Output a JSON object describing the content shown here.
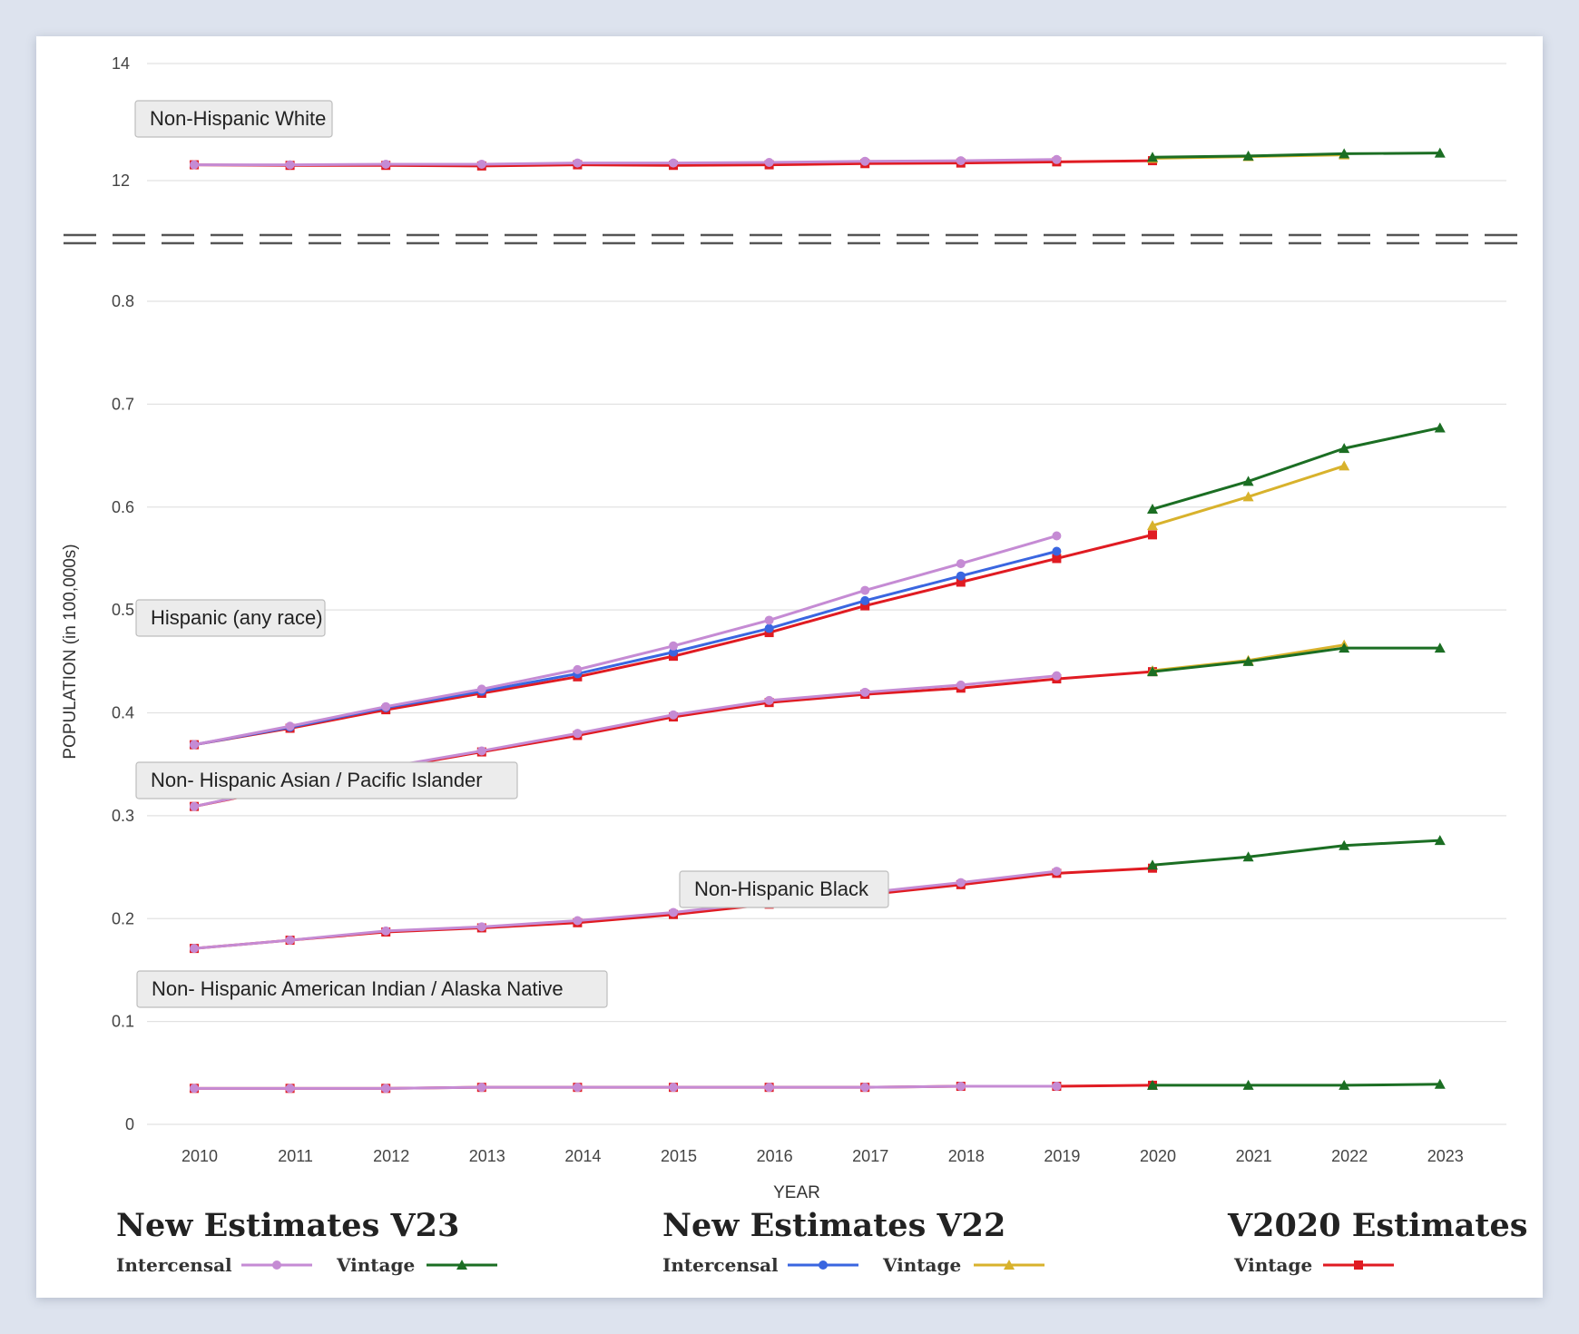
{
  "chart_data": {
    "type": "line",
    "xlabel": "YEAR",
    "ylabel": "POPULATION (in 100,000s)",
    "x": [
      "2010",
      "2011",
      "2012",
      "2013",
      "2014",
      "2015",
      "2016",
      "2017",
      "2018",
      "2019",
      "2020",
      "2021",
      "2022",
      "2023"
    ],
    "upper_axis": {
      "ylim": [
        11.05,
        14
      ],
      "ticks": [
        "14",
        "12"
      ]
    },
    "lower_axis": {
      "ylim": [
        0,
        0.8
      ],
      "ticks": [
        "0.8",
        "0.7",
        "0.6",
        "0.5",
        "0.4",
        "0.3",
        "0.2",
        "0.1",
        "0"
      ]
    },
    "axis_break": true,
    "grid": true,
    "group_labels": [
      "Non-Hispanic White",
      "Hispanic (any race)",
      "Non- Hispanic Asian / Pacific Islander",
      "Non-Hispanic Black",
      "Non- Hispanic American Indian / Alaska Native"
    ],
    "colors": {
      "v23_intercensal": "#c58bd4",
      "v23_vintage": "#1b6e23",
      "v22_intercensal": "#3a66e0",
      "v22_vintage": "#d8b22c",
      "v2020_vintage": "#e01b22"
    },
    "groups": [
      {
        "axis": "upper",
        "series": [
          {
            "key": "v2020_vintage",
            "marker": "square",
            "x": [
              2010,
              2011,
              2012,
              2013,
              2014,
              2015,
              2016,
              2017,
              2018,
              2019,
              2020
            ],
            "values": [
              12.27,
              12.26,
              12.26,
              12.25,
              12.27,
              12.26,
              12.27,
              12.29,
              12.3,
              12.32,
              12.34
            ]
          },
          {
            "key": "v23_intercensal",
            "marker": "circle",
            "x": [
              2010,
              2011,
              2012,
              2013,
              2014,
              2015,
              2016,
              2017,
              2018,
              2019
            ],
            "values": [
              12.27,
              12.27,
              12.28,
              12.28,
              12.3,
              12.3,
              12.31,
              12.33,
              12.34,
              12.36
            ]
          },
          {
            "key": "v22_vintage",
            "marker": "triangle",
            "x": [
              2020,
              2021,
              2022
            ],
            "values": [
              12.38,
              12.41,
              12.44
            ]
          },
          {
            "key": "v23_vintage",
            "marker": "triangle",
            "x": [
              2020,
              2021,
              2022,
              2023
            ],
            "values": [
              12.4,
              12.42,
              12.46,
              12.47
            ]
          }
        ]
      },
      {
        "axis": "lower",
        "series": [
          {
            "key": "v2020_vintage",
            "marker": "square",
            "x": [
              2010,
              2011,
              2012,
              2013,
              2014,
              2015,
              2016,
              2017,
              2018,
              2019,
              2020
            ],
            "values": [
              0.369,
              0.385,
              0.403,
              0.419,
              0.435,
              0.455,
              0.478,
              0.504,
              0.527,
              0.55,
              0.573
            ]
          },
          {
            "key": "v22_intercensal",
            "marker": "circle",
            "x": [
              2010,
              2011,
              2012,
              2013,
              2014,
              2015,
              2016,
              2017,
              2018,
              2019
            ],
            "values": [
              0.369,
              0.386,
              0.405,
              0.421,
              0.438,
              0.459,
              0.482,
              0.509,
              0.533,
              0.557
            ]
          },
          {
            "key": "v23_intercensal",
            "marker": "circle",
            "x": [
              2010,
              2011,
              2012,
              2013,
              2014,
              2015,
              2016,
              2017,
              2018,
              2019
            ],
            "values": [
              0.369,
              0.387,
              0.406,
              0.423,
              0.442,
              0.465,
              0.49,
              0.519,
              0.545,
              0.572
            ]
          },
          {
            "key": "v22_vintage",
            "marker": "triangle",
            "x": [
              2020,
              2021,
              2022
            ],
            "values": [
              0.582,
              0.61,
              0.64
            ]
          },
          {
            "key": "v23_vintage",
            "marker": "triangle",
            "x": [
              2020,
              2021,
              2022,
              2023
            ],
            "values": [
              0.598,
              0.625,
              0.657,
              0.677
            ]
          }
        ]
      },
      {
        "axis": "lower",
        "series": [
          {
            "key": "v2020_vintage",
            "marker": "square",
            "x": [
              2010,
              2011,
              2012,
              2013,
              2014,
              2015,
              2016,
              2017,
              2018,
              2019,
              2020
            ],
            "values": [
              0.309,
              0.328,
              0.346,
              0.362,
              0.378,
              0.396,
              0.41,
              0.418,
              0.424,
              0.433,
              0.44
            ]
          },
          {
            "key": "v23_intercensal",
            "marker": "circle",
            "x": [
              2010,
              2011,
              2012,
              2013,
              2014,
              2015,
              2016,
              2017,
              2018,
              2019
            ],
            "values": [
              0.309,
              0.329,
              0.347,
              0.363,
              0.38,
              0.398,
              0.412,
              0.42,
              0.427,
              0.436
            ]
          },
          {
            "key": "v22_vintage",
            "marker": "triangle",
            "x": [
              2020,
              2021,
              2022
            ],
            "values": [
              0.441,
              0.451,
              0.466
            ]
          },
          {
            "key": "v23_vintage",
            "marker": "triangle",
            "x": [
              2020,
              2021,
              2022,
              2023
            ],
            "values": [
              0.44,
              0.45,
              0.463,
              0.463
            ]
          }
        ]
      },
      {
        "axis": "lower",
        "series": [
          {
            "key": "v2020_vintage",
            "marker": "square",
            "x": [
              2010,
              2011,
              2012,
              2013,
              2014,
              2015,
              2016,
              2017,
              2018,
              2019,
              2020
            ],
            "values": [
              0.171,
              0.179,
              0.187,
              0.191,
              0.196,
              0.204,
              0.214,
              0.223,
              0.233,
              0.244,
              0.249
            ]
          },
          {
            "key": "v23_intercensal",
            "marker": "circle",
            "x": [
              2010,
              2011,
              2012,
              2013,
              2014,
              2015,
              2016,
              2017,
              2018,
              2019
            ],
            "values": [
              0.171,
              0.179,
              0.188,
              0.192,
              0.198,
              0.206,
              0.216,
              0.225,
              0.235,
              0.246
            ]
          },
          {
            "key": "v23_vintage",
            "marker": "triangle",
            "x": [
              2020,
              2021,
              2022,
              2023
            ],
            "values": [
              0.252,
              0.26,
              0.271,
              0.276
            ]
          }
        ]
      },
      {
        "axis": "lower",
        "series": [
          {
            "key": "v2020_vintage",
            "marker": "square",
            "x": [
              2010,
              2011,
              2012,
              2013,
              2014,
              2015,
              2016,
              2017,
              2018,
              2019,
              2020
            ],
            "values": [
              0.035,
              0.035,
              0.035,
              0.036,
              0.036,
              0.036,
              0.036,
              0.036,
              0.037,
              0.037,
              0.038
            ]
          },
          {
            "key": "v23_intercensal",
            "marker": "circle",
            "x": [
              2010,
              2011,
              2012,
              2013,
              2014,
              2015,
              2016,
              2017,
              2018,
              2019
            ],
            "values": [
              0.035,
              0.035,
              0.035,
              0.036,
              0.036,
              0.036,
              0.036,
              0.036,
              0.037,
              0.037
            ]
          },
          {
            "key": "v23_vintage",
            "marker": "triangle",
            "x": [
              2020,
              2021,
              2022,
              2023
            ],
            "values": [
              0.038,
              0.038,
              0.038,
              0.039
            ]
          }
        ]
      }
    ]
  },
  "legend": {
    "groups": [
      {
        "title": "New Estimates V23",
        "items": [
          {
            "label": "Intercensal",
            "key": "v23_intercensal",
            "marker": "circle"
          },
          {
            "label": "Vintage",
            "key": "v23_vintage",
            "marker": "triangle"
          }
        ]
      },
      {
        "title": "New Estimates V22",
        "items": [
          {
            "label": "Intercensal",
            "key": "v22_intercensal",
            "marker": "circle"
          },
          {
            "label": "Vintage",
            "key": "v22_vintage",
            "marker": "triangle"
          }
        ]
      },
      {
        "title": "V2020 Estimates",
        "items": [
          {
            "label": "Vintage",
            "key": "v2020_vintage",
            "marker": "square"
          }
        ]
      }
    ]
  }
}
